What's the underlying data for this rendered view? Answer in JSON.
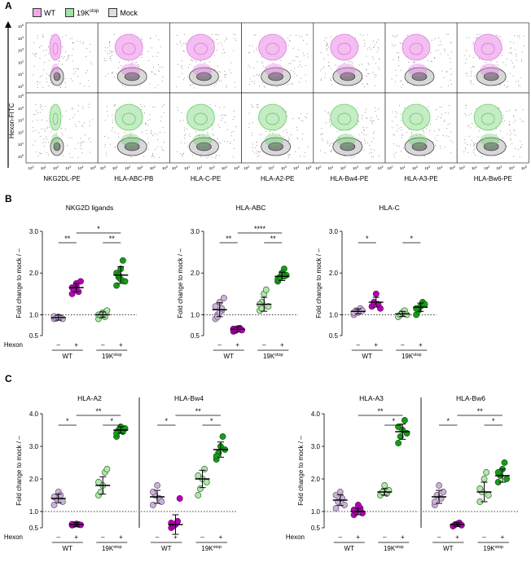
{
  "panel_labels": {
    "a": "A",
    "b": "B",
    "c": "C"
  },
  "legend": [
    {
      "label": "WT",
      "color": "#e060d8"
    },
    {
      "label": "19K",
      "sup": "stop",
      "color": "#6ccf6c"
    },
    {
      "label": "Mock",
      "color": "#555555"
    }
  ],
  "flow": {
    "yaxis": "Hexon-FITC",
    "columns": [
      "NKG2DL-PE",
      "HLA-ABC-PB",
      "HLA-C-PE",
      "HLA-A2-PE",
      "HLA-Bw4-PE",
      "HLA-A3-PE",
      "HLA-Bw6-PE"
    ],
    "tick_pow": [
      "0",
      "1",
      "2",
      "3",
      "4",
      "5"
    ]
  },
  "colors": {
    "wt": "#b400b4",
    "k19": "#1a9a1a",
    "mock": "#444444",
    "wt_light": "#c9b3d6",
    "k19_light": "#b7e3b0"
  },
  "hexon_label": "Hexon",
  "minus": "–",
  "plus": "+",
  "group_wt": "WT",
  "group_19k": "19K",
  "group_19k_sup": "stop",
  "ylabel": "Fold change to mock / –",
  "chart_data": [
    {
      "title": "NKG2D ligands",
      "type": "scatter",
      "ylim": [
        0.5,
        3.0
      ],
      "ticks": [
        "0.5",
        "1.0",
        "2.0",
        "3.0"
      ],
      "means": [
        0.93,
        1.65,
        1.0,
        1.95
      ],
      "sig_short": [
        "**",
        "**"
      ],
      "sig_long": "*",
      "values": [
        [
          0.9,
          0.92,
          0.95,
          0.93,
          0.9,
          0.96,
          0.91,
          0.94
        ],
        [
          1.5,
          1.6,
          1.7,
          1.55,
          1.8,
          1.65,
          1.6,
          1.75
        ],
        [
          0.9,
          1.0,
          1.05,
          0.95,
          1.1,
          1.0,
          0.98,
          1.02
        ],
        [
          1.7,
          1.9,
          2.1,
          2.3,
          1.8,
          2.0,
          1.95,
          1.85
        ]
      ]
    },
    {
      "title": "HLA-ABC",
      "type": "scatter",
      "ylim": [
        0.5,
        3.0
      ],
      "ticks": [
        "0.5",
        "1.0",
        "2.0",
        "3.0"
      ],
      "means": [
        1.12,
        0.65,
        1.25,
        1.92
      ],
      "sig_short": [
        "**",
        "**"
      ],
      "sig_long": "****",
      "values": [
        [
          0.9,
          1.0,
          1.3,
          1.1,
          1.4,
          1.2,
          0.95,
          1.05,
          1.15
        ],
        [
          0.6,
          0.62,
          0.65,
          0.68,
          0.63,
          0.66,
          0.64,
          0.67
        ],
        [
          1.1,
          1.3,
          1.5,
          1.6,
          1.2,
          1.25,
          1.15
        ],
        [
          1.8,
          1.9,
          2.0,
          2.1,
          1.95,
          1.85,
          1.9,
          2.0,
          1.92
        ]
      ]
    },
    {
      "title": "HLA-C",
      "type": "scatter",
      "ylim": [
        0.5,
        3.0
      ],
      "ticks": [
        "0.5",
        "1.0",
        "2.0",
        "3.0"
      ],
      "means": [
        1.08,
        1.3,
        1.02,
        1.18
      ],
      "sig_short": [
        "*",
        "*"
      ],
      "sig_long": "",
      "values": [
        [
          1.0,
          1.1,
          1.05,
          1.15,
          1.1,
          1.05
        ],
        [
          1.2,
          1.3,
          1.5,
          1.25,
          1.15
        ],
        [
          0.95,
          1.0,
          1.05,
          1.1,
          1.0
        ],
        [
          1.0,
          1.1,
          1.2,
          1.3,
          1.25,
          1.15
        ]
      ]
    },
    {
      "title": "HLA-A2",
      "type": "scatter",
      "ylim": [
        0.5,
        4.0
      ],
      "ticks": [
        "0.5",
        "1.0",
        "2.0",
        "3.0",
        "4.0"
      ],
      "means": [
        1.4,
        0.6,
        1.8,
        3.5
      ],
      "sig_short": [
        "*",
        "*"
      ],
      "sig_long": "**",
      "values": [
        [
          1.2,
          1.4,
          1.6,
          1.5,
          1.3,
          1.45
        ],
        [
          0.58,
          0.6,
          0.62,
          0.6,
          0.59,
          0.61
        ],
        [
          1.5,
          1.6,
          1.8,
          2.2,
          2.3,
          1.9
        ],
        [
          3.3,
          3.5,
          3.6,
          3.45,
          3.55,
          3.4
        ]
      ]
    },
    {
      "title": "HLA-Bw4",
      "type": "scatter",
      "ylim": [
        0.5,
        4.0
      ],
      "ticks": [
        "0.5",
        "1.0",
        "2.0",
        "3.0",
        "4.0"
      ],
      "means": [
        1.45,
        0.6,
        2.0,
        2.9
      ],
      "sig_short": [
        "*",
        "*"
      ],
      "sig_long": "**",
      "values": [
        [
          1.2,
          1.5,
          1.8,
          1.4,
          1.3,
          1.6
        ],
        [
          0.5,
          0.55,
          0.6,
          0.7,
          1.4,
          0.65
        ],
        [
          1.5,
          1.7,
          2.0,
          2.3,
          1.9,
          2.1
        ],
        [
          2.6,
          2.8,
          3.0,
          3.3,
          2.9,
          2.7
        ]
      ]
    },
    {
      "title": "HLA-A3",
      "type": "scatter",
      "ylim": [
        0.5,
        4.0
      ],
      "ticks": [
        "0.5",
        "1.0",
        "2.0",
        "3.0",
        "4.0"
      ],
      "means": [
        1.35,
        1.0,
        1.6,
        3.45
      ],
      "sig_short": [
        "*"
      ],
      "sig_long": "**",
      "values": [
        [
          1.1,
          1.3,
          1.6,
          1.4,
          1.2,
          1.5
        ],
        [
          0.9,
          1.0,
          1.2,
          1.1,
          0.95,
          1.05
        ],
        [
          1.5,
          1.6,
          1.8,
          1.55,
          1.65
        ],
        [
          3.1,
          3.3,
          3.5,
          3.8,
          3.4,
          3.6
        ]
      ]
    },
    {
      "title": "HLA-Bw6",
      "type": "scatter",
      "ylim": [
        0.5,
        4.0
      ],
      "ticks": [
        "0.5",
        "1.0",
        "2.0",
        "3.0",
        "4.0"
      ],
      "means": [
        1.45,
        0.6,
        1.6,
        2.1
      ],
      "sig_short": [
        "*",
        "*"
      ],
      "sig_long": "**",
      "values": [
        [
          1.2,
          1.5,
          1.8,
          1.4,
          1.6,
          1.3
        ],
        [
          0.55,
          0.6,
          0.62,
          0.65,
          0.58
        ],
        [
          1.3,
          1.6,
          2.0,
          2.2,
          1.5,
          1.7
        ],
        [
          1.9,
          2.1,
          2.3,
          2.5,
          2.0,
          2.2
        ]
      ]
    }
  ]
}
